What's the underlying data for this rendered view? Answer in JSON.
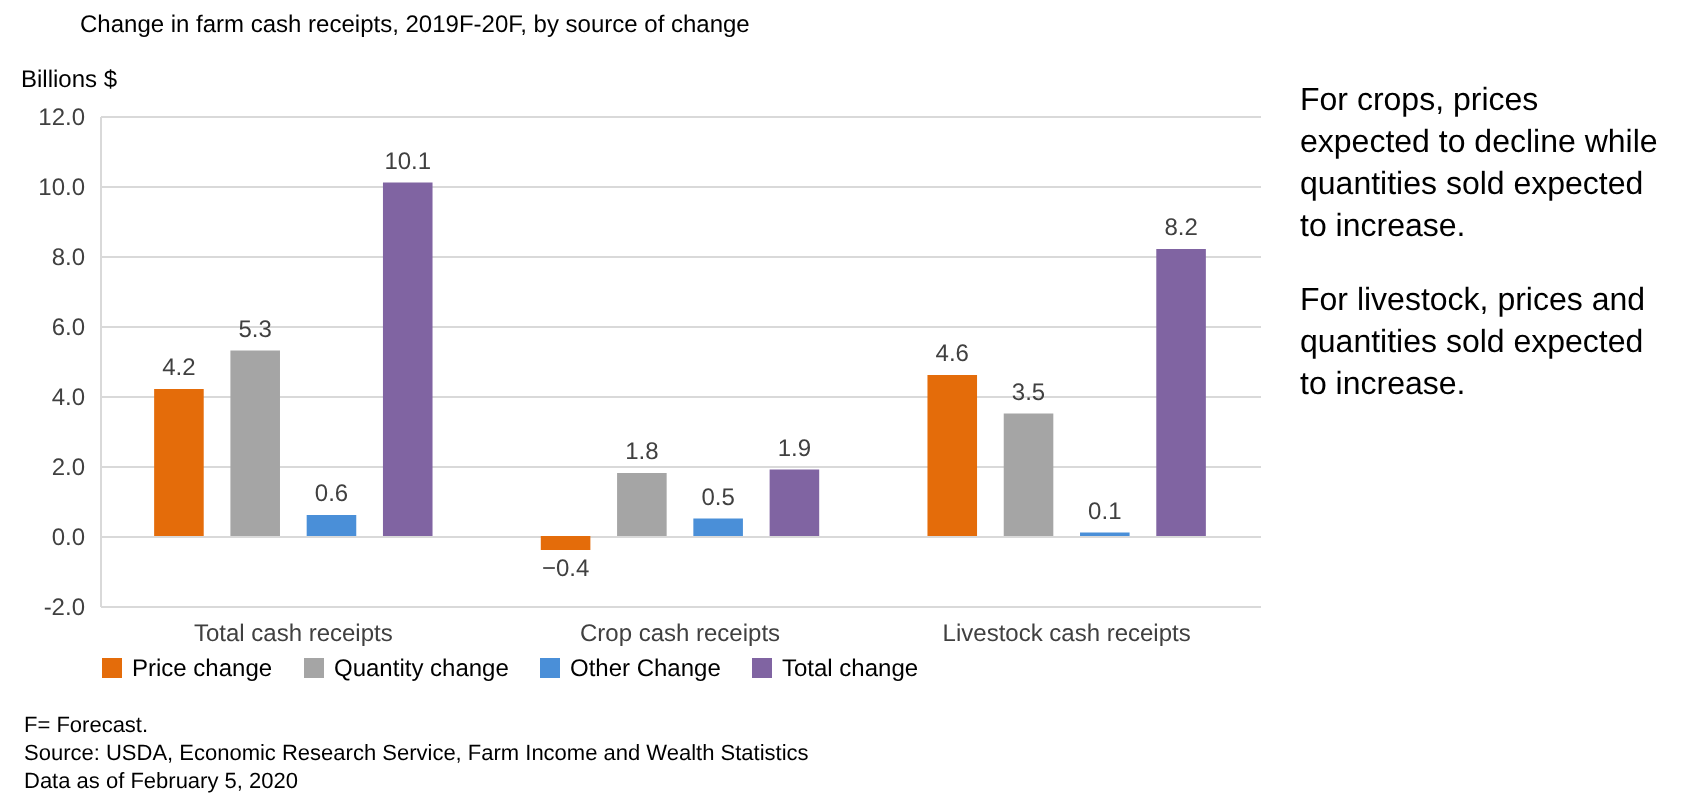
{
  "chart_data": {
    "type": "bar",
    "title": "Change in farm cash receipts, 2019F-20F, by source of change",
    "ylabel": "Billions $",
    "categories": [
      "Total cash receipts",
      "Crop cash receipts",
      "Livestock cash receipts"
    ],
    "series": [
      {
        "name": "Price change",
        "color": "#e46c0a",
        "values": [
          4.2,
          -0.4,
          4.6
        ]
      },
      {
        "name": "Quantity change",
        "color": "#a5a5a5",
        "values": [
          5.3,
          1.8,
          3.5
        ]
      },
      {
        "name": "Other Change",
        "color": "#4a8fd8",
        "values": [
          0.6,
          0.5,
          0.1
        ]
      },
      {
        "name": "Total change",
        "color": "#8064a2",
        "values": [
          10.1,
          1.9,
          8.2
        ]
      }
    ],
    "ylim": [
      -2,
      12
    ],
    "yticks": [
      {
        "value": -2,
        "label": "-2.0"
      },
      {
        "value": 0,
        "label": "0.0"
      },
      {
        "value": 2,
        "label": "2.0"
      },
      {
        "value": 4,
        "label": "4.0"
      },
      {
        "value": 6,
        "label": "6.0"
      },
      {
        "value": 8,
        "label": "8.0"
      },
      {
        "value": 10,
        "label": "10.0"
      },
      {
        "value": 12,
        "label": "12.0"
      }
    ],
    "grid": "y",
    "legend": "bottom",
    "data_labels": true,
    "annotations": [
      "For crops, prices expected to decline while quantities sold expected to increase.",
      "For livestock, prices and quantities sold expected to increase.",
      "F= Forecast.",
      "Source: USDA, Economic Research Service, Farm Income and Wealth  Statistics",
      "Data as of February 5, 2020"
    ]
  }
}
